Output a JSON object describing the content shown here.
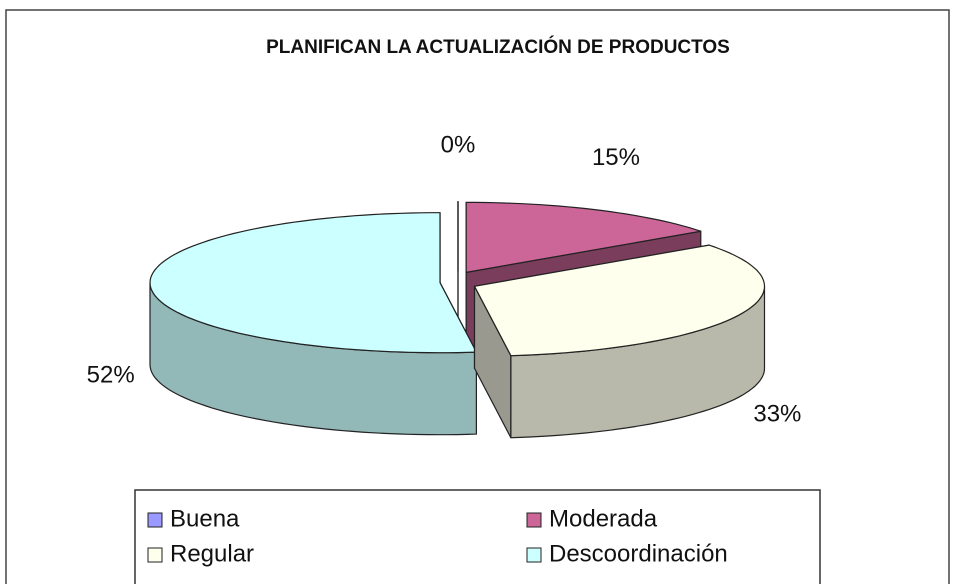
{
  "chart_data": {
    "type": "pie3d",
    "title": "PLANIFICAN LA ACTUALIZACIÓN DE PRODUCTOS",
    "categories": [
      "Buena",
      "Moderada",
      "Regular",
      "Descoordinación"
    ],
    "values": [
      0,
      15,
      33,
      52
    ],
    "value_labels": [
      "0%",
      "15%",
      "33%",
      "52%"
    ],
    "colors": [
      "#9999ff",
      "#cc6699",
      "#ffffee",
      "#ccffff"
    ],
    "legend": "bottom"
  }
}
